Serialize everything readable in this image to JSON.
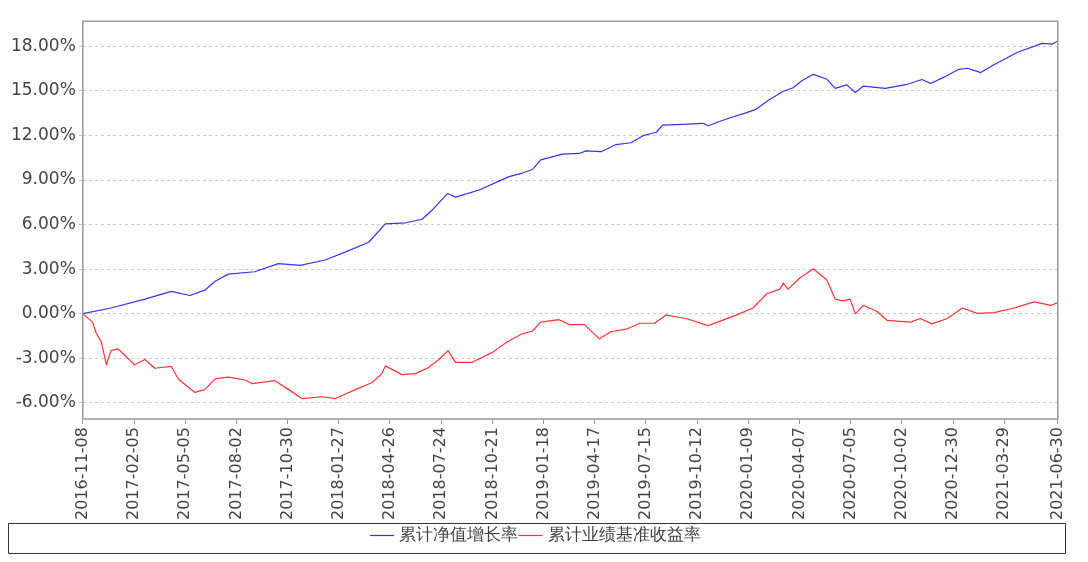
{
  "chart_data": {
    "type": "line",
    "xlim": [
      "2016-11-08",
      "2021-06-30"
    ],
    "xticks": [
      "2016-11-08",
      "2017-02-05",
      "2017-05-05",
      "2017-08-02",
      "2017-10-30",
      "2018-01-27",
      "2018-04-26",
      "2018-07-24",
      "2018-10-21",
      "2019-01-18",
      "2019-04-17",
      "2019-07-15",
      "2019-10-12",
      "2020-01-09",
      "2020-04-07",
      "2020-07-05",
      "2020-10-02",
      "2020-12-30",
      "2021-03-29",
      "2021-06-30"
    ],
    "ylim": [
      -7.1,
      19.7
    ],
    "yticks": [
      {
        "value": -6,
        "label": "-6.00%"
      },
      {
        "value": -3,
        "label": "-3.00%"
      },
      {
        "value": 0,
        "label": "0.00%"
      },
      {
        "value": 3,
        "label": "3.00%"
      },
      {
        "value": 6,
        "label": "6.00%"
      },
      {
        "value": 9,
        "label": "9.00%"
      },
      {
        "value": 12,
        "label": "12.00%"
      },
      {
        "value": 15,
        "label": "15.00%"
      },
      {
        "value": 18,
        "label": "18.00%"
      }
    ],
    "grid": "y",
    "legend": "bottom",
    "marker": "none",
    "line_style": "solid",
    "series": [
      {
        "name": "累计净值增长率",
        "color": "#3333ff",
        "x": [
          "2016-11-08",
          "2016-12-27",
          "2017-02-24",
          "2017-04-11",
          "2017-05-13",
          "2017-06-08",
          "2017-06-26",
          "2017-07-19",
          "2017-09-03",
          "2017-10-14",
          "2017-11-21",
          "2018-01-03",
          "2018-02-07",
          "2018-03-20",
          "2018-04-18",
          "2018-05-23",
          "2018-06-21",
          "2018-07-08",
          "2018-08-04",
          "2018-08-18",
          "2018-09-28",
          "2018-11-19",
          "2018-12-12",
          "2018-12-30",
          "2019-01-13",
          "2019-02-20",
          "2019-03-21",
          "2019-04-02",
          "2019-04-28",
          "2019-05-24",
          "2019-06-19",
          "2019-07-10",
          "2019-08-02",
          "2019-08-13",
          "2019-09-17",
          "2019-10-22",
          "2019-10-31",
          "2019-12-02",
          "2020-01-06",
          "2020-01-23",
          "2020-02-13",
          "2020-03-10",
          "2020-03-27",
          "2020-04-11",
          "2020-05-01",
          "2020-05-24",
          "2020-06-08",
          "2020-06-28",
          "2020-07-13",
          "2020-07-27",
          "2020-09-03",
          "2020-10-11",
          "2020-11-06",
          "2020-11-21",
          "2020-12-14",
          "2021-01-09",
          "2021-01-24",
          "2021-02-16",
          "2021-03-11",
          "2021-04-21",
          "2021-06-03",
          "2021-06-21",
          "2021-06-30"
        ],
        "values": [
          0,
          0.38,
          0.98,
          1.5,
          1.22,
          1.58,
          2.18,
          2.66,
          2.82,
          3.37,
          3.25,
          3.61,
          4.14,
          4.81,
          6.05,
          6.12,
          6.36,
          6.96,
          8.09,
          7.85,
          8.33,
          9.23,
          9.47,
          9.71,
          10.36,
          10.74,
          10.79,
          10.96,
          10.91,
          11.39,
          11.51,
          11.99,
          12.22,
          12.7,
          12.75,
          12.82,
          12.66,
          13.11,
          13.54,
          13.78,
          14.38,
          14.98,
          15.22,
          15.69,
          16.12,
          15.81,
          15.17,
          15.41,
          14.9,
          15.33,
          15.17,
          15.45,
          15.77,
          15.5,
          15.93,
          16.46,
          16.53,
          16.24,
          16.77,
          17.61,
          18.21,
          18.16,
          18.37
        ]
      },
      {
        "name": "累计业绩基准收益率",
        "color": "#ff3333",
        "x": [
          "2016-11-08",
          "2016-11-25",
          "2016-12-01",
          "2016-12-10",
          "2016-12-19",
          "2016-12-27",
          "2017-01-08",
          "2017-02-06",
          "2017-02-24",
          "2017-03-13",
          "2017-04-11",
          "2017-04-23",
          "2017-05-22",
          "2017-06-08",
          "2017-06-26",
          "2017-07-19",
          "2017-08-17",
          "2017-08-29",
          "2017-10-08",
          "2017-11-01",
          "2017-11-24",
          "2017-12-29",
          "2018-01-21",
          "2018-02-25",
          "2018-03-26",
          "2018-04-12",
          "2018-04-18",
          "2018-05-17",
          "2018-06-09",
          "2018-06-30",
          "2018-07-20",
          "2018-08-05",
          "2018-08-18",
          "2018-09-16",
          "2018-10-21",
          "2018-11-16",
          "2018-12-12",
          "2018-12-30",
          "2019-01-13",
          "2019-02-14",
          "2019-03-04",
          "2019-03-30",
          "2019-04-25",
          "2019-05-15",
          "2019-06-11",
          "2019-07-04",
          "2019-07-30",
          "2019-08-19",
          "2019-09-23",
          "2019-10-31",
          "2019-12-19",
          "2020-01-17",
          "2020-02-10",
          "2020-03-04",
          "2020-03-10",
          "2020-03-18",
          "2020-04-08",
          "2020-05-01",
          "2020-05-24",
          "2020-06-08",
          "2020-06-22",
          "2020-07-04",
          "2020-07-13",
          "2020-07-27",
          "2020-08-20",
          "2020-09-06",
          "2020-10-17",
          "2020-11-03",
          "2020-11-23",
          "2020-12-20",
          "2021-01-15",
          "2021-02-10",
          "2021-03-11",
          "2021-04-15",
          "2021-05-20",
          "2021-06-18",
          "2021-06-30"
        ],
        "values": [
          0,
          -0.57,
          -1.29,
          -1.89,
          -3.44,
          -2.49,
          -2.37,
          -3.44,
          -3.09,
          -3.68,
          -3.56,
          -4.4,
          -5.31,
          -5.12,
          -4.4,
          -4.28,
          -4.47,
          -4.71,
          -4.52,
          -5.12,
          -5.72,
          -5.6,
          -5.72,
          -5.12,
          -4.64,
          -4.04,
          -3.52,
          -4.11,
          -4.04,
          -3.68,
          -3.09,
          -2.49,
          -3.28,
          -3.28,
          -2.61,
          -1.89,
          -1.36,
          -1.17,
          -0.57,
          -0.41,
          -0.74,
          -0.74,
          -1.7,
          -1.22,
          -1.05,
          -0.65,
          -0.65,
          -0.1,
          -0.33,
          -0.81,
          -0.1,
          0.38,
          1.34,
          1.65,
          2.06,
          1.65,
          2.42,
          3.01,
          2.3,
          0.98,
          0.86,
          0.98,
          -0.02,
          0.55,
          0.14,
          -0.45,
          -0.57,
          -0.33,
          -0.69,
          -0.33,
          0.38,
          0.02,
          0.07,
          0.38,
          0.79,
          0.55,
          0.74
        ]
      }
    ]
  }
}
